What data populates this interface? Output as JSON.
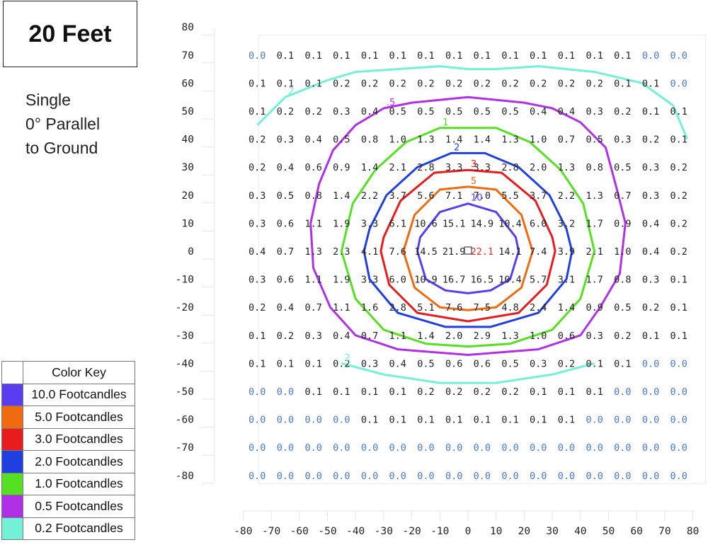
{
  "title": "20 Feet",
  "description": [
    "Single",
    "0° Parallel",
    "to Ground"
  ],
  "legend": {
    "header": "Color Key",
    "items": [
      {
        "label": "10.0 Footcandles",
        "color": "#5a3df0"
      },
      {
        "label": "5.0 Footcandles",
        "color": "#f06a10"
      },
      {
        "label": "3.0 Footcandles",
        "color": "#e81c1c"
      },
      {
        "label": "2.0 Footcandles",
        "color": "#1f3fe0"
      },
      {
        "label": "1.0 Footcandles",
        "color": "#55e022"
      },
      {
        "label": "0.5 Footcandles",
        "color": "#b030e8"
      },
      {
        "label": "0.2 Footcandles",
        "color": "#72f0d8"
      }
    ]
  },
  "chart_data": {
    "type": "heatmap",
    "x_ticks": [
      "-80",
      "-70",
      "-60",
      "-50",
      "-40",
      "-30",
      "-20",
      "-10",
      "0",
      "10",
      "20",
      "30",
      "40",
      "50",
      "60",
      "70",
      "80"
    ],
    "y_ticks": [
      "80",
      "70",
      "60",
      "50",
      "40",
      "30",
      "20",
      "10",
      "0",
      "-10",
      "-20",
      "-30",
      "-40",
      "-50",
      "-60",
      "-70",
      "-80"
    ],
    "xlim": [
      -80,
      80
    ],
    "ylim": [
      -80,
      80
    ],
    "grid_x": [
      -75,
      -65,
      -55,
      -45,
      -35,
      -25,
      -15,
      -5,
      5,
      15,
      25,
      35,
      45,
      55,
      65,
      75
    ],
    "grid_y": [
      70,
      60,
      50,
      40,
      30,
      20,
      10,
      0,
      -10,
      -20,
      -30,
      -40,
      -50,
      -60,
      -70,
      -80
    ],
    "values": [
      [
        "0.0",
        "0.1",
        "0.1",
        "0.1",
        "0.1",
        "0.1",
        "0.1",
        "0.1",
        "0.1",
        "0.1",
        "0.1",
        "0.1",
        "0.1",
        "0.1",
        "0.0",
        "0.0"
      ],
      [
        "0.1",
        "0.1",
        "0.1",
        "0.2",
        "0.2",
        "0.2",
        "0.2",
        "0.2",
        "0.2",
        "0.2",
        "0.2",
        "0.2",
        "0.2",
        "0.1",
        "0.1",
        "0.0"
      ],
      [
        "0.1",
        "0.2",
        "0.2",
        "0.3",
        "0.4",
        "0.5",
        "0.5",
        "0.5",
        "0.5",
        "0.5",
        "0.4",
        "0.4",
        "0.3",
        "0.2",
        "0.1",
        "0.1"
      ],
      [
        "0.2",
        "0.3",
        "0.4",
        "0.5",
        "0.8",
        "1.0",
        "1.3",
        "1.4",
        "1.4",
        "1.3",
        "1.0",
        "0.7",
        "0.5",
        "0.3",
        "0.2",
        "0.1"
      ],
      [
        "0.2",
        "0.4",
        "0.6",
        "0.9",
        "1.4",
        "2.1",
        "2.8",
        "3.3",
        "3.3",
        "2.8",
        "2.0",
        "1.3",
        "0.8",
        "0.5",
        "0.3",
        "0.2"
      ],
      [
        "0.3",
        "0.5",
        "0.8",
        "1.4",
        "2.2",
        "3.7",
        "5.6",
        "7.1",
        "7.0",
        "5.5",
        "3.7",
        "2.2",
        "1.3",
        "0.7",
        "0.3",
        "0.2"
      ],
      [
        "0.3",
        "0.6",
        "1.1",
        "1.9",
        "3.3",
        "6.1",
        "10.6",
        "15.1",
        "14.9",
        "10.4",
        "6.0",
        "3.2",
        "1.7",
        "0.9",
        "0.4",
        "0.2"
      ],
      [
        "0.4",
        "0.7",
        "1.3",
        "2.3",
        "4.1",
        "7.6",
        "14.5",
        "21.9",
        "22.1",
        "14.1",
        "7.4",
        "3.9",
        "2.1",
        "1.0",
        "0.4",
        "0.2"
      ],
      [
        "0.3",
        "0.6",
        "1.1",
        "1.9",
        "3.3",
        "6.0",
        "10.9",
        "16.7",
        "16.5",
        "10.4",
        "5.7",
        "3.1",
        "1.7",
        "0.8",
        "0.3",
        "0.1"
      ],
      [
        "0.2",
        "0.4",
        "0.7",
        "1.1",
        "1.6",
        "2.8",
        "5.1",
        "7.6",
        "7.5",
        "4.8",
        "2.4",
        "1.4",
        "0.9",
        "0.5",
        "0.2",
        "0.1"
      ],
      [
        "0.1",
        "0.2",
        "0.3",
        "0.4",
        "0.7",
        "1.1",
        "1.4",
        "2.0",
        "2.9",
        "1.3",
        "1.0",
        "0.6",
        "0.3",
        "0.2",
        "0.1",
        "0.1"
      ],
      [
        "0.1",
        "0.1",
        "0.1",
        "0.2",
        "0.3",
        "0.4",
        "0.5",
        "0.6",
        "0.6",
        "0.5",
        "0.3",
        "0.2",
        "0.1",
        "0.1",
        "0.0",
        "0.0"
      ],
      [
        "0.0",
        "0.0",
        "0.1",
        "0.1",
        "0.1",
        "0.1",
        "0.2",
        "0.2",
        "0.2",
        "0.2",
        "0.1",
        "0.1",
        "0.1",
        "0.0",
        "0.0",
        "0.0"
      ],
      [
        "0.0",
        "0.0",
        "0.0",
        "0.0",
        "0.1",
        "0.1",
        "0.1",
        "0.1",
        "0.1",
        "0.1",
        "0.1",
        "0.1",
        "0.0",
        "0.0",
        "0.0",
        "0.0"
      ],
      [
        "0.0",
        "0.0",
        "0.0",
        "0.0",
        "0.0",
        "0.0",
        "0.0",
        "0.0",
        "0.0",
        "0.0",
        "0.0",
        "0.0",
        "0.0",
        "0.0",
        "0.0",
        "0.0"
      ],
      [
        "0.0",
        "0.0",
        "0.0",
        "0.0",
        "0.0",
        "0.0",
        "0.0",
        "0.0",
        "0.0",
        "0.0",
        "0.0",
        "0.0",
        "0.0",
        "0.0",
        "0.0",
        "0.0"
      ]
    ],
    "contours": [
      {
        "level": "0.2",
        "label": "2",
        "color": "#72f0d8",
        "points": [
          [
            -75,
            45
          ],
          [
            -65,
            55
          ],
          [
            -50,
            61
          ],
          [
            -40,
            64
          ],
          [
            -25,
            65
          ],
          [
            -10,
            66
          ],
          [
            0,
            65
          ],
          [
            10,
            65
          ],
          [
            25,
            66
          ],
          [
            45,
            64
          ],
          [
            62,
            60
          ],
          [
            73,
            52
          ],
          [
            78,
            40
          ]
        ],
        "closed": false
      },
      {
        "level": "0.2",
        "label": "2",
        "color": "#72f0d8",
        "points": [
          [
            -45,
            -40
          ],
          [
            -30,
            -44
          ],
          [
            -10,
            -47
          ],
          [
            10,
            -47
          ],
          [
            30,
            -44
          ],
          [
            45,
            -40
          ]
        ],
        "closed": false
      },
      {
        "level": "0.5",
        "label": ".5",
        "color": "#b030e8",
        "points": [
          [
            -48,
            36
          ],
          [
            -40,
            45
          ],
          [
            -30,
            51
          ],
          [
            -20,
            53
          ],
          [
            0,
            55
          ],
          [
            20,
            53
          ],
          [
            30,
            51
          ],
          [
            40,
            46
          ],
          [
            49,
            37
          ],
          [
            53,
            22
          ],
          [
            56,
            10
          ],
          [
            54,
            -8
          ],
          [
            47,
            -20
          ],
          [
            40,
            -30
          ],
          [
            25,
            -35
          ],
          [
            0,
            -37
          ],
          [
            -25,
            -35
          ],
          [
            -40,
            -30
          ],
          [
            -49,
            -20
          ],
          [
            -55,
            -6
          ],
          [
            -56,
            10
          ],
          [
            -53,
            24
          ]
        ],
        "closed": true
      },
      {
        "level": "1",
        "label": "1",
        "color": "#55e022",
        "points": [
          [
            -22,
            39
          ],
          [
            -10,
            44
          ],
          [
            10,
            44
          ],
          [
            22,
            39
          ],
          [
            33,
            29
          ],
          [
            41,
            17
          ],
          [
            45,
            0
          ],
          [
            40,
            -17
          ],
          [
            30,
            -28
          ],
          [
            15,
            -33
          ],
          [
            0,
            -34
          ],
          [
            -15,
            -33
          ],
          [
            -30,
            -28
          ],
          [
            -40,
            -17
          ],
          [
            -45,
            0
          ],
          [
            -41,
            17
          ],
          [
            -33,
            29
          ]
        ],
        "closed": true
      },
      {
        "level": "2",
        "label": "2",
        "color": "#1f3fe0",
        "points": [
          [
            -18,
            30
          ],
          [
            -6,
            35
          ],
          [
            6,
            35
          ],
          [
            18,
            30
          ],
          [
            29,
            20
          ],
          [
            35,
            8
          ],
          [
            37,
            0
          ],
          [
            35,
            -10
          ],
          [
            25,
            -22
          ],
          [
            8,
            -27
          ],
          [
            -8,
            -27
          ],
          [
            -25,
            -22
          ],
          [
            -35,
            -10
          ],
          [
            -37,
            0
          ],
          [
            -35,
            8
          ],
          [
            -29,
            20
          ]
        ],
        "closed": true
      },
      {
        "level": "3",
        "label": "3",
        "color": "#e81c1c",
        "points": [
          [
            -12,
            28
          ],
          [
            0,
            29
          ],
          [
            12,
            28
          ],
          [
            24,
            18
          ],
          [
            30,
            5
          ],
          [
            31,
            0
          ],
          [
            28,
            -12
          ],
          [
            18,
            -22
          ],
          [
            0,
            -25
          ],
          [
            -18,
            -22
          ],
          [
            -28,
            -12
          ],
          [
            -31,
            0
          ],
          [
            -30,
            5
          ],
          [
            -24,
            18
          ]
        ],
        "closed": true
      },
      {
        "level": "5",
        "label": "5",
        "color": "#f06a10",
        "points": [
          [
            -10,
            22
          ],
          [
            0,
            23
          ],
          [
            10,
            22
          ],
          [
            19,
            13
          ],
          [
            23,
            0
          ],
          [
            19,
            -13
          ],
          [
            10,
            -20
          ],
          [
            0,
            -21
          ],
          [
            -10,
            -20
          ],
          [
            -19,
            -13
          ],
          [
            -23,
            0
          ],
          [
            -19,
            13
          ]
        ],
        "closed": true
      },
      {
        "level": "10",
        "label": "10",
        "color": "#5a3df0",
        "points": [
          [
            -10,
            14
          ],
          [
            0,
            17
          ],
          [
            10,
            14
          ],
          [
            17,
            5
          ],
          [
            18,
            0
          ],
          [
            15,
            -10
          ],
          [
            8,
            -14
          ],
          [
            0,
            -15
          ],
          [
            -8,
            -14
          ],
          [
            -15,
            -10
          ],
          [
            -18,
            0
          ],
          [
            -17,
            5
          ]
        ],
        "closed": true
      }
    ]
  }
}
